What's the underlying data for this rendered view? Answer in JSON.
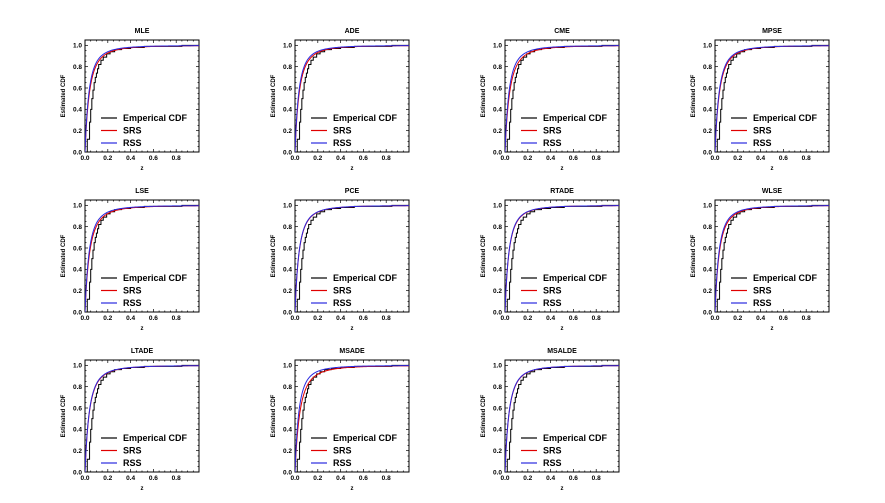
{
  "legend": [
    {
      "label": "Emperical CDF",
      "color": "#000000"
    },
    {
      "label": "SRS",
      "color": "#e00000"
    },
    {
      "label": "RSS",
      "color": "#2a2ae0"
    }
  ],
  "xlabel": "z",
  "ylabel": "Estimated CDF",
  "xlim": [
    0,
    1
  ],
  "ylim": [
    0,
    1.05
  ],
  "xticks": [
    "0.0",
    "0.2",
    "0.4",
    "0.6",
    "0.8"
  ],
  "yticks": [
    "0.0",
    "0.2",
    "0.4",
    "0.6",
    "0.8",
    "1.0"
  ],
  "chart_data": [
    {
      "type": "line",
      "title": "MLE",
      "xlabel": "z",
      "ylabel": "Estimated CDF",
      "legend": "bottom-right",
      "series": [
        {
          "name": "Emperical CDF",
          "kind": "step",
          "x": [
            0.0,
            0.02,
            0.04,
            0.05,
            0.06,
            0.07,
            0.08,
            0.09,
            0.1,
            0.11,
            0.12,
            0.14,
            0.16,
            0.19,
            0.22,
            0.26,
            0.32,
            0.4,
            0.52,
            0.68,
            0.85,
            0.97
          ],
          "y": [
            0.0,
            0.12,
            0.28,
            0.4,
            0.5,
            0.58,
            0.65,
            0.7,
            0.74,
            0.78,
            0.82,
            0.86,
            0.89,
            0.92,
            0.94,
            0.96,
            0.97,
            0.98,
            0.99,
            0.99,
            1.0,
            1.0
          ]
        },
        {
          "name": "SRS",
          "kind": "curve",
          "rate": 11.5,
          "shape": 1.0
        },
        {
          "name": "RSS",
          "kind": "curve",
          "rate": 13.0,
          "shape": 1.0
        }
      ]
    },
    {
      "type": "line",
      "title": "ADE",
      "xlabel": "z",
      "ylabel": "Estimated CDF",
      "legend": "bottom-right",
      "series": [
        {
          "name": "Emperical CDF",
          "kind": "step",
          "x": [
            0.0,
            0.02,
            0.04,
            0.05,
            0.06,
            0.07,
            0.08,
            0.09,
            0.1,
            0.11,
            0.12,
            0.14,
            0.16,
            0.19,
            0.22,
            0.26,
            0.32,
            0.4,
            0.52,
            0.68,
            0.85,
            0.97
          ],
          "y": [
            0.0,
            0.12,
            0.28,
            0.4,
            0.5,
            0.58,
            0.65,
            0.7,
            0.74,
            0.78,
            0.82,
            0.86,
            0.89,
            0.92,
            0.94,
            0.96,
            0.97,
            0.98,
            0.99,
            0.99,
            1.0,
            1.0
          ]
        },
        {
          "name": "SRS",
          "kind": "curve",
          "rate": 12.0,
          "shape": 1.0
        },
        {
          "name": "RSS",
          "kind": "curve",
          "rate": 13.5,
          "shape": 1.0
        }
      ]
    },
    {
      "type": "line",
      "title": "CME",
      "xlabel": "z",
      "ylabel": "Estimated CDF",
      "legend": "bottom-right",
      "series": [
        {
          "name": "Emperical CDF",
          "kind": "step",
          "x": [
            0.0,
            0.02,
            0.04,
            0.05,
            0.06,
            0.07,
            0.08,
            0.09,
            0.1,
            0.11,
            0.12,
            0.14,
            0.16,
            0.19,
            0.22,
            0.26,
            0.32,
            0.4,
            0.52,
            0.68,
            0.85,
            0.97
          ],
          "y": [
            0.0,
            0.12,
            0.28,
            0.4,
            0.5,
            0.58,
            0.65,
            0.7,
            0.74,
            0.78,
            0.82,
            0.86,
            0.89,
            0.92,
            0.94,
            0.96,
            0.97,
            0.98,
            0.99,
            0.99,
            1.0,
            1.0
          ]
        },
        {
          "name": "SRS",
          "kind": "curve",
          "rate": 11.0,
          "shape": 1.0
        },
        {
          "name": "RSS",
          "kind": "curve",
          "rate": 13.0,
          "shape": 1.0
        }
      ]
    },
    {
      "type": "line",
      "title": "MPSE",
      "xlabel": "z",
      "ylabel": "Estimated CDF",
      "legend": "bottom-right",
      "series": [
        {
          "name": "Emperical CDF",
          "kind": "step",
          "x": [
            0.0,
            0.02,
            0.04,
            0.05,
            0.06,
            0.07,
            0.08,
            0.09,
            0.1,
            0.11,
            0.12,
            0.14,
            0.16,
            0.19,
            0.22,
            0.26,
            0.32,
            0.4,
            0.52,
            0.68,
            0.85,
            0.97
          ],
          "y": [
            0.0,
            0.12,
            0.28,
            0.4,
            0.5,
            0.58,
            0.65,
            0.7,
            0.74,
            0.78,
            0.82,
            0.86,
            0.89,
            0.92,
            0.94,
            0.96,
            0.97,
            0.98,
            0.99,
            0.99,
            1.0,
            1.0
          ]
        },
        {
          "name": "SRS",
          "kind": "curve",
          "rate": 11.5,
          "shape": 1.0
        },
        {
          "name": "RSS",
          "kind": "curve",
          "rate": 12.5,
          "shape": 1.0
        }
      ]
    },
    {
      "type": "line",
      "title": "LSE",
      "xlabel": "z",
      "ylabel": "Estimated CDF",
      "legend": "bottom-right",
      "series": [
        {
          "name": "Emperical CDF",
          "kind": "step",
          "x": [
            0.0,
            0.02,
            0.04,
            0.05,
            0.06,
            0.07,
            0.08,
            0.09,
            0.1,
            0.11,
            0.12,
            0.14,
            0.16,
            0.19,
            0.22,
            0.26,
            0.32,
            0.4,
            0.52,
            0.68,
            0.85,
            0.97
          ],
          "y": [
            0.0,
            0.12,
            0.28,
            0.4,
            0.5,
            0.58,
            0.65,
            0.7,
            0.74,
            0.78,
            0.82,
            0.86,
            0.89,
            0.92,
            0.94,
            0.96,
            0.97,
            0.98,
            0.99,
            0.99,
            1.0,
            1.0
          ]
        },
        {
          "name": "SRS",
          "kind": "curve",
          "rate": 11.0,
          "shape": 1.0
        },
        {
          "name": "RSS",
          "kind": "curve",
          "rate": 12.5,
          "shape": 1.0
        }
      ]
    },
    {
      "type": "line",
      "title": "PCE",
      "xlabel": "z",
      "ylabel": "Estimated CDF",
      "legend": "bottom-right",
      "series": [
        {
          "name": "Emperical CDF",
          "kind": "step",
          "x": [
            0.0,
            0.02,
            0.04,
            0.05,
            0.06,
            0.07,
            0.08,
            0.09,
            0.1,
            0.11,
            0.12,
            0.14,
            0.16,
            0.19,
            0.22,
            0.26,
            0.32,
            0.4,
            0.52,
            0.68,
            0.85,
            0.97
          ],
          "y": [
            0.0,
            0.12,
            0.28,
            0.4,
            0.5,
            0.58,
            0.65,
            0.7,
            0.74,
            0.78,
            0.82,
            0.86,
            0.89,
            0.92,
            0.94,
            0.96,
            0.97,
            0.98,
            0.99,
            0.99,
            1.0,
            1.0
          ]
        },
        {
          "name": "SRS",
          "kind": "curve",
          "rate": 12.5,
          "shape": 1.0
        },
        {
          "name": "RSS",
          "kind": "curve",
          "rate": 12.8,
          "shape": 1.0
        }
      ]
    },
    {
      "type": "line",
      "title": "RTADE",
      "xlabel": "z",
      "ylabel": "Estimated CDF",
      "legend": "bottom-right",
      "series": [
        {
          "name": "Emperical CDF",
          "kind": "step",
          "x": [
            0.0,
            0.02,
            0.04,
            0.05,
            0.06,
            0.07,
            0.08,
            0.09,
            0.1,
            0.11,
            0.12,
            0.14,
            0.16,
            0.19,
            0.22,
            0.26,
            0.32,
            0.4,
            0.52,
            0.68,
            0.85,
            0.97
          ],
          "y": [
            0.0,
            0.12,
            0.28,
            0.4,
            0.5,
            0.58,
            0.65,
            0.7,
            0.74,
            0.78,
            0.82,
            0.86,
            0.89,
            0.92,
            0.94,
            0.96,
            0.97,
            0.98,
            0.99,
            0.99,
            1.0,
            1.0
          ]
        },
        {
          "name": "SRS",
          "kind": "curve",
          "rate": 12.8,
          "shape": 1.0
        },
        {
          "name": "RSS",
          "kind": "curve",
          "rate": 13.2,
          "shape": 1.0
        }
      ]
    },
    {
      "type": "line",
      "title": "WLSE",
      "xlabel": "z",
      "ylabel": "Estimated CDF",
      "legend": "bottom-right",
      "series": [
        {
          "name": "Emperical CDF",
          "kind": "step",
          "x": [
            0.0,
            0.02,
            0.04,
            0.05,
            0.06,
            0.07,
            0.08,
            0.09,
            0.1,
            0.11,
            0.12,
            0.14,
            0.16,
            0.19,
            0.22,
            0.26,
            0.32,
            0.4,
            0.52,
            0.68,
            0.85,
            0.97
          ],
          "y": [
            0.0,
            0.12,
            0.28,
            0.4,
            0.5,
            0.58,
            0.65,
            0.7,
            0.74,
            0.78,
            0.82,
            0.86,
            0.89,
            0.92,
            0.94,
            0.96,
            0.97,
            0.98,
            0.99,
            0.99,
            1.0,
            1.0
          ]
        },
        {
          "name": "SRS",
          "kind": "curve",
          "rate": 11.8,
          "shape": 1.0
        },
        {
          "name": "RSS",
          "kind": "curve",
          "rate": 13.0,
          "shape": 1.0
        }
      ]
    },
    {
      "type": "line",
      "title": "LTADE",
      "xlabel": "z",
      "ylabel": "Estimated CDF",
      "legend": "bottom-right",
      "series": [
        {
          "name": "Emperical CDF",
          "kind": "step",
          "x": [
            0.0,
            0.02,
            0.04,
            0.05,
            0.06,
            0.07,
            0.08,
            0.09,
            0.1,
            0.11,
            0.12,
            0.14,
            0.16,
            0.19,
            0.22,
            0.26,
            0.32,
            0.4,
            0.52,
            0.68,
            0.85,
            0.97
          ],
          "y": [
            0.0,
            0.12,
            0.28,
            0.4,
            0.5,
            0.58,
            0.65,
            0.7,
            0.74,
            0.78,
            0.82,
            0.86,
            0.89,
            0.92,
            0.94,
            0.96,
            0.97,
            0.98,
            0.99,
            0.99,
            1.0,
            1.0
          ]
        },
        {
          "name": "SRS",
          "kind": "curve",
          "rate": 11.8,
          "shape": 1.0
        },
        {
          "name": "RSS",
          "kind": "curve",
          "rate": 12.2,
          "shape": 1.0
        }
      ]
    },
    {
      "type": "line",
      "title": "MSADE",
      "xlabel": "z",
      "ylabel": "Estimated CDF",
      "legend": "bottom-right",
      "series": [
        {
          "name": "Emperical CDF",
          "kind": "step",
          "x": [
            0.0,
            0.02,
            0.04,
            0.05,
            0.06,
            0.07,
            0.08,
            0.09,
            0.1,
            0.11,
            0.12,
            0.14,
            0.16,
            0.19,
            0.22,
            0.26,
            0.32,
            0.4,
            0.52,
            0.68,
            0.85,
            0.97
          ],
          "y": [
            0.0,
            0.12,
            0.28,
            0.4,
            0.5,
            0.58,
            0.65,
            0.7,
            0.74,
            0.78,
            0.82,
            0.86,
            0.89,
            0.92,
            0.94,
            0.96,
            0.97,
            0.98,
            0.99,
            0.99,
            1.0,
            1.0
          ]
        },
        {
          "name": "SRS",
          "kind": "curve",
          "rate": 10.5,
          "shape": 1.0
        },
        {
          "name": "RSS",
          "kind": "curve",
          "rate": 13.5,
          "shape": 1.0
        }
      ]
    },
    {
      "type": "line",
      "title": "MSALDE",
      "xlabel": "z",
      "ylabel": "Estimated CDF",
      "legend": "bottom-right",
      "series": [
        {
          "name": "Emperical CDF",
          "kind": "step",
          "x": [
            0.0,
            0.02,
            0.04,
            0.05,
            0.06,
            0.07,
            0.08,
            0.09,
            0.1,
            0.11,
            0.12,
            0.14,
            0.16,
            0.19,
            0.22,
            0.26,
            0.32,
            0.4,
            0.52,
            0.68,
            0.85,
            0.97
          ],
          "y": [
            0.0,
            0.12,
            0.28,
            0.4,
            0.5,
            0.58,
            0.65,
            0.7,
            0.74,
            0.78,
            0.82,
            0.86,
            0.89,
            0.92,
            0.94,
            0.96,
            0.97,
            0.98,
            0.99,
            0.99,
            1.0,
            1.0
          ]
        },
        {
          "name": "SRS",
          "kind": "curve",
          "rate": 12.3,
          "shape": 1.0
        },
        {
          "name": "RSS",
          "kind": "curve",
          "rate": 12.6,
          "shape": 1.0
        }
      ]
    }
  ]
}
